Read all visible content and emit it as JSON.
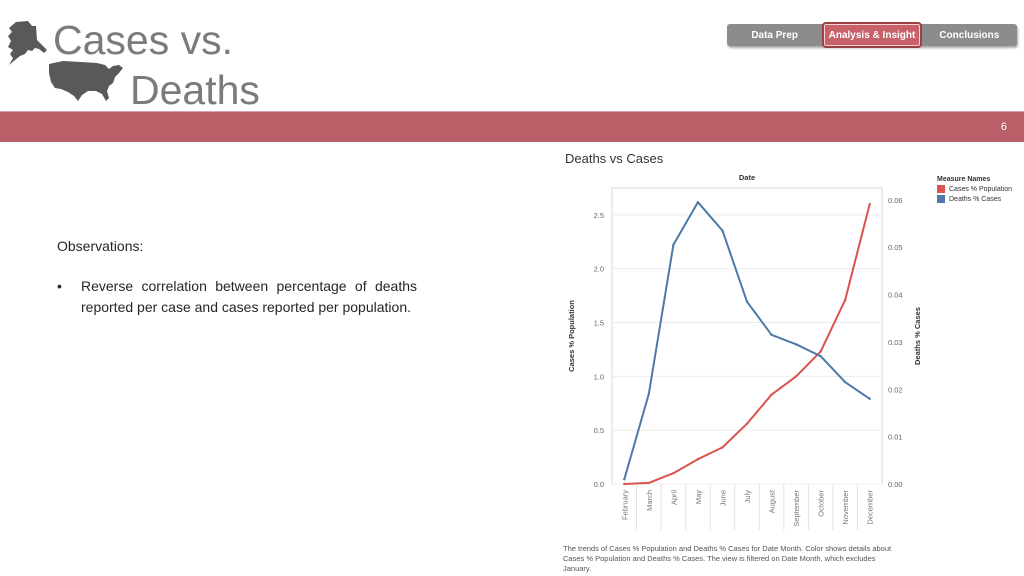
{
  "header": {
    "title_line1": "Cases vs.",
    "title_line2": "Deaths",
    "icons": [
      "alaska-map-icon",
      "usa-map-icon"
    ]
  },
  "nav": {
    "tabs": [
      {
        "label": "Data Prep",
        "active": false
      },
      {
        "label": "Analysis & Insight",
        "active": true
      },
      {
        "label": "Conclusions",
        "active": false
      }
    ]
  },
  "banner": {
    "page_number": "6"
  },
  "observations": {
    "heading": "Observations:",
    "bullet": "•",
    "items": [
      "Reverse correlation between percentage of deaths reported per case and cases reported per population."
    ]
  },
  "chart_data": {
    "type": "line",
    "title": "Deaths vs Cases",
    "xlabel": "Date",
    "categories": [
      "February",
      "March",
      "April",
      "May",
      "June",
      "July",
      "August",
      "September",
      "October",
      "November",
      "December"
    ],
    "series": [
      {
        "name": "Cases % Population",
        "axis": "left",
        "color": "#d9534f",
        "values": [
          0.0,
          0.01,
          0.1,
          0.23,
          0.34,
          0.56,
          0.83,
          1.0,
          1.23,
          1.71,
          2.6
        ]
      },
      {
        "name": "Deaths % Cases",
        "axis": "right",
        "color": "#4e79a7",
        "values": [
          0.001,
          0.019,
          0.0505,
          0.0595,
          0.0535,
          0.0385,
          0.0315,
          0.0295,
          0.027,
          0.0215,
          0.018
        ]
      }
    ],
    "y_left": {
      "label": "Cases % Population",
      "range": [
        0,
        2.75
      ],
      "ticks": [
        "0.0",
        "0.5",
        "1.0",
        "1.5",
        "2.0",
        "2.5"
      ]
    },
    "y_right": {
      "label": "Deaths % Cases",
      "range": [
        0,
        0.0625
      ],
      "ticks": [
        "0.00",
        "0.01",
        "0.02",
        "0.03",
        "0.04",
        "0.05",
        "0.06"
      ]
    },
    "legend": {
      "title": "Measure Names",
      "placement": "right"
    },
    "grid": true,
    "caption": "The trends of Cases % Population and Deaths % Cases for Date Month.  Color shows details about Cases % Population and Deaths % Cases. The view is filtered on Date Month, which excludes January."
  }
}
